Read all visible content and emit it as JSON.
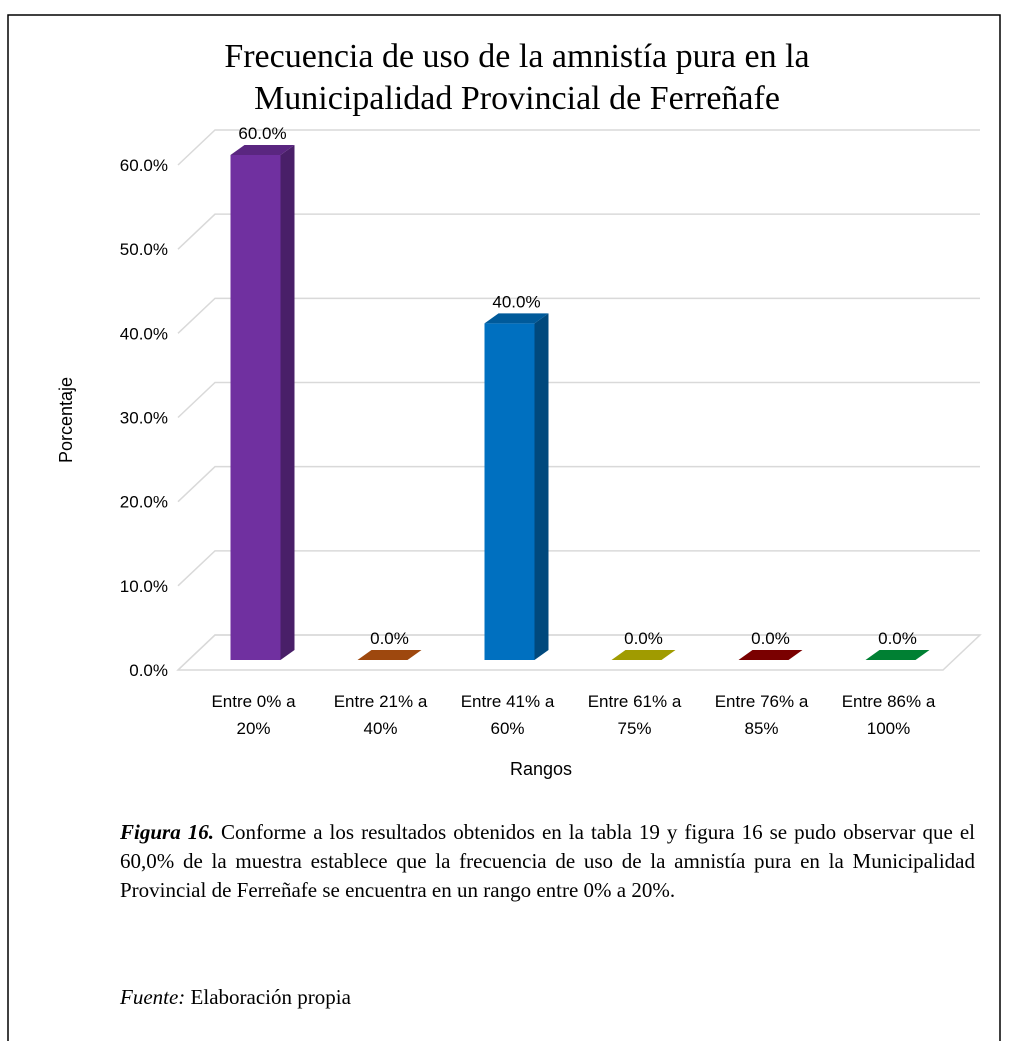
{
  "chart_data": {
    "type": "bar3d",
    "title": "Frecuencia de uso de la amnistía pura en la Municipalidad Provincial de Ferreñafe",
    "categories": [
      "Entre 0% a 20%",
      "Entre 21% a 40%",
      "Entre 41% a 60%",
      "Entre 61% a 75%",
      "Entre 76% a 85%",
      "Entre 86% a 100%"
    ],
    "values": [
      60,
      0,
      40,
      0,
      0,
      0
    ],
    "value_labels": [
      "60.0%",
      "0.0%",
      "40.0%",
      "0.0%",
      "0.0%",
      "0.0%"
    ],
    "colors": [
      "#7030a0",
      "#c55a11",
      "#0070c0",
      "#c8c200",
      "#990000",
      "#00a040"
    ],
    "ylim": [
      0,
      60
    ],
    "yticks": [
      {
        "value": 0,
        "label": "0.0%"
      },
      {
        "value": 10,
        "label": "10.0%"
      },
      {
        "value": 20,
        "label": "20.0%"
      },
      {
        "value": 30,
        "label": "30.0%"
      },
      {
        "value": 40,
        "label": "40.0%"
      },
      {
        "value": 50,
        "label": "50.0%"
      },
      {
        "value": 60,
        "label": "60.0%"
      }
    ],
    "ylabel": "Porcentaje",
    "xlabel": "Rangos",
    "grid": true
  },
  "caption": {
    "label": "Figura 16.",
    "text": "Conforme a los resultados obtenidos en la tabla 19 y figura 16 se pudo observar que el 60,0% de la muestra establece que la frecuencia de uso de la amnistía pura en la Municipalidad Provincial de Ferreñafe se encuentra en un rango entre 0% a 20%."
  },
  "source": {
    "label": "Fuente:",
    "text": "Elaboración propia"
  }
}
